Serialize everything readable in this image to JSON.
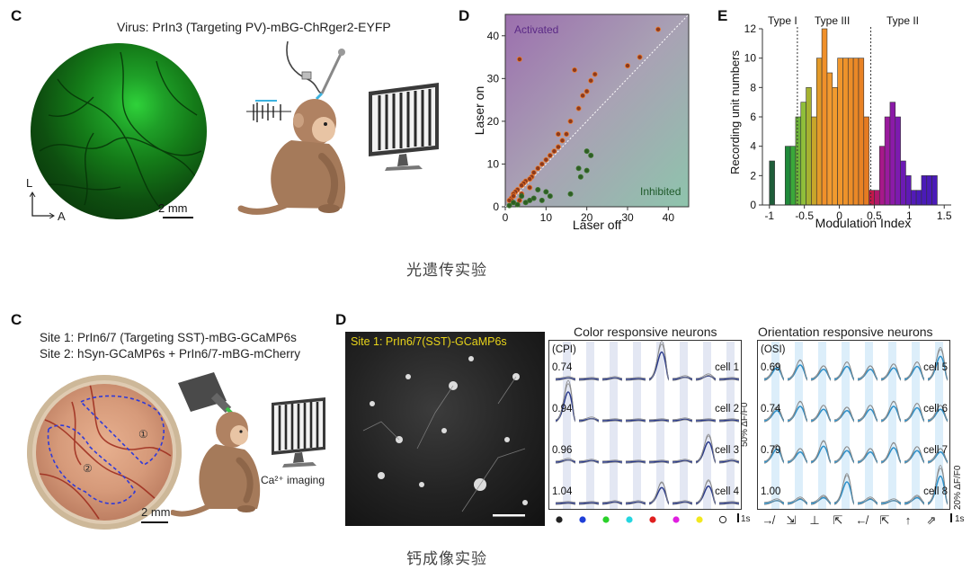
{
  "top": {
    "panel_c": {
      "label": "C",
      "title": "Virus: PrIn3 (Targeting PV)-mBG-ChRger2-EYFP",
      "axis_l": "L",
      "axis_a": "A",
      "scale": "2 mm"
    },
    "panel_d": {
      "label": "D",
      "chart_data": {
        "type": "scatter",
        "xlabel": "Laser off",
        "ylabel": "Laser on",
        "xlim": [
          0,
          45
        ],
        "ylim": [
          0,
          45
        ],
        "xticks": [
          "0",
          "10",
          "20",
          "30",
          "40"
        ],
        "yticks": [
          "0",
          "10",
          "20",
          "30",
          "40"
        ],
        "annotations": [
          "Activated",
          "Inhibited"
        ],
        "series": [
          {
            "name": "Activated",
            "color": "#8b3a1e",
            "points": [
              [
                3.5,
                34.5
              ],
              [
                17,
                32
              ],
              [
                33,
                35
              ],
              [
                37.5,
                41.5
              ],
              [
                30,
                33
              ],
              [
                21,
                29.5
              ],
              [
                22,
                31
              ],
              [
                20,
                27
              ],
              [
                18,
                23
              ],
              [
                16,
                20
              ],
              [
                15,
                17
              ],
              [
                14,
                15.5
              ],
              [
                13,
                14
              ],
              [
                11,
                12
              ],
              [
                10,
                11
              ],
              [
                9,
                10
              ],
              [
                8,
                9
              ],
              [
                7,
                8
              ],
              [
                6.5,
                7
              ],
              [
                6,
                6.5
              ],
              [
                5,
                6
              ],
              [
                4.5,
                5.5
              ],
              [
                4,
                5
              ],
              [
                3,
                4
              ],
              [
                2.5,
                3.5
              ],
              [
                2,
                3
              ],
              [
                1.5,
                2
              ],
              [
                1,
                1.5
              ],
              [
                3.5,
                1.5
              ],
              [
                2,
                2.5
              ],
              [
                13,
                17
              ],
              [
                12,
                13
              ],
              [
                19,
                26
              ],
              [
                6,
                4.5
              ],
              [
                4,
                3
              ]
            ]
          },
          {
            "name": "Inhibited",
            "color": "#2e5d24",
            "points": [
              [
                20,
                13
              ],
              [
                21,
                12
              ],
              [
                18,
                9
              ],
              [
                20,
                8.5
              ],
              [
                18.5,
                7
              ],
              [
                16,
                3
              ],
              [
                11,
                2.5
              ],
              [
                8,
                4
              ],
              [
                9,
                1.5
              ],
              [
                7,
                2
              ],
              [
                5,
                1
              ],
              [
                3,
                0.5
              ],
              [
                2,
                1
              ],
              [
                1,
                0.3
              ],
              [
                6,
                1.5
              ],
              [
                4,
                2.5
              ],
              [
                10,
                3.5
              ]
            ]
          }
        ]
      }
    },
    "panel_e": {
      "label": "E",
      "chart_data": {
        "type": "bar",
        "xlabel": "Modulation Index",
        "ylabel": "Recording unit numbers",
        "xlim": [
          -1.1,
          1.6
        ],
        "ylim": [
          0,
          12
        ],
        "xticks": [
          "-1",
          "-0.5",
          "0",
          "0.5",
          "1",
          "1.5"
        ],
        "yticks": [
          "0",
          "2",
          "4",
          "6",
          "8",
          "10",
          "12"
        ],
        "type_labels": [
          "Type I",
          "Type III",
          "Type II"
        ],
        "bin_width": 0.075,
        "bin_starts": [
          -1.0,
          -0.775,
          -0.7,
          -0.625,
          -0.55,
          -0.475,
          -0.4,
          -0.325,
          -0.25,
          -0.175,
          -0.1,
          -0.025,
          0.05,
          0.125,
          0.2,
          0.275,
          0.35,
          0.425,
          0.5,
          0.575,
          0.65,
          0.725,
          0.8,
          0.875,
          0.95,
          1.025,
          1.1,
          1.175,
          1.25,
          1.325
        ],
        "values": [
          3,
          4,
          4,
          6,
          7,
          8,
          6,
          10,
          12,
          9,
          8,
          10,
          10,
          10,
          10,
          10,
          6,
          1,
          1,
          4,
          6,
          7,
          6,
          3,
          2,
          1,
          1,
          2,
          2,
          2
        ],
        "colors": [
          "#1f5e3a",
          "#1f8a3a",
          "#3aa83a",
          "#6eb43a",
          "#8fbf3a",
          "#a5b230",
          "#c8a62a",
          "#e39a28",
          "#f0902a",
          "#f29a30",
          "#f19a2e",
          "#f0962c",
          "#ee922a",
          "#ec8d28",
          "#ea8826",
          "#e88224",
          "#e57b22",
          "#c2184b",
          "#b1186a",
          "#a7188a",
          "#9a1a9e",
          "#8b1aa8",
          "#7d1ab0",
          "#6c1ab4",
          "#5f1ab6",
          "#521ab8",
          "#4a1ab8",
          "#4a1ab8",
          "#4a1ab8",
          "#4a1ab8"
        ]
      }
    },
    "caption": "光遗传实验"
  },
  "bottom": {
    "panel_c": {
      "label": "C",
      "site1": "Site 1: PrIn6/7 (Targeting SST)-mBG-GCaMP6s",
      "site2": "Site 2: hSyn-GCaMP6s + PrIn6/7-mBG-mCherry",
      "scale": "2 mm",
      "imaging": "Ca²⁺ imaging",
      "site_marks": [
        "①",
        "②"
      ]
    },
    "panel_d": {
      "label": "D",
      "micro_title": "Site 1: PrIn6/7(SST)-GCaMP6s",
      "color_title": "Color responsive neurons",
      "color_index": "(CPI)",
      "color_cells": [
        {
          "value": "0.74",
          "name": "cell 1"
        },
        {
          "value": "0.94",
          "name": "cell 2"
        },
        {
          "value": "0.96",
          "name": "cell 3"
        },
        {
          "value": "1.04",
          "name": "cell 4"
        }
      ],
      "color_dots": [
        "#222222",
        "#1f3fd8",
        "#2ad12a",
        "#25d6e0",
        "#e01f1f",
        "#e01fe0",
        "#f2e81f",
        "#ffffff"
      ],
      "color_scale_y": "50% ΔF/F0",
      "color_scale_x": "1s",
      "orient_title": "Orientation responsive neurons",
      "orient_index": "(OSI)",
      "orient_cells": [
        {
          "value": "0.69",
          "name": "cell 5"
        },
        {
          "value": "0.74",
          "name": "cell 6"
        },
        {
          "value": "0.79",
          "name": "cell 7"
        },
        {
          "value": "1.00",
          "name": "cell 8"
        }
      ],
      "orient_glyphs": [
        "↛",
        "⇲",
        "⊥",
        "⇱",
        "↚",
        "⇱",
        "↑",
        "⇗"
      ],
      "orient_scale_y": "20% ΔF/F0",
      "orient_scale_x": "1s"
    },
    "caption": "钙成像实验"
  }
}
